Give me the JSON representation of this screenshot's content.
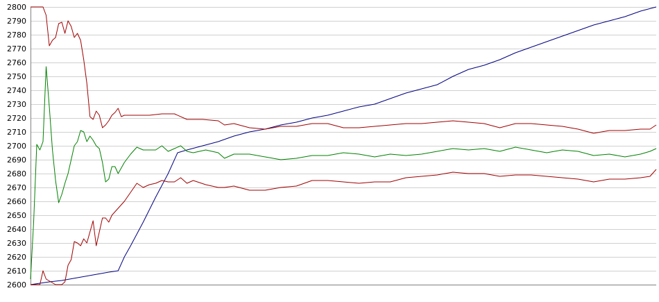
{
  "chart_data": {
    "type": "line",
    "title": "",
    "xlabel": "",
    "ylabel": "",
    "ylim": [
      2600,
      2800
    ],
    "xlim": [
      0,
      200
    ],
    "yticks": [
      2600,
      2610,
      2620,
      2630,
      2640,
      2650,
      2660,
      2670,
      2680,
      2690,
      2700,
      2710,
      2720,
      2730,
      2740,
      2750,
      2760,
      2770,
      2780,
      2790,
      2800
    ],
    "grid": true,
    "legend": "none",
    "series": [
      {
        "color": "#000080",
        "points": [
          [
            0,
            2600
          ],
          [
            3,
            2601
          ],
          [
            6,
            2602
          ],
          [
            10,
            2603
          ],
          [
            15,
            2605
          ],
          [
            20,
            2607
          ],
          [
            25,
            2609
          ],
          [
            28,
            2610
          ],
          [
            30,
            2620
          ],
          [
            32,
            2628
          ],
          [
            36,
            2645
          ],
          [
            40,
            2663
          ],
          [
            44,
            2680
          ],
          [
            47,
            2695
          ],
          [
            50,
            2697
          ],
          [
            55,
            2700
          ],
          [
            60,
            2703
          ],
          [
            65,
            2707
          ],
          [
            70,
            2710
          ],
          [
            75,
            2712
          ],
          [
            80,
            2715
          ],
          [
            85,
            2717
          ],
          [
            90,
            2720
          ],
          [
            95,
            2722
          ],
          [
            100,
            2725
          ],
          [
            105,
            2728
          ],
          [
            110,
            2730
          ],
          [
            115,
            2734
          ],
          [
            120,
            2738
          ],
          [
            125,
            2741
          ],
          [
            130,
            2744
          ],
          [
            135,
            2750
          ],
          [
            140,
            2755
          ],
          [
            145,
            2758
          ],
          [
            150,
            2762
          ],
          [
            155,
            2767
          ],
          [
            160,
            2771
          ],
          [
            165,
            2775
          ],
          [
            170,
            2779
          ],
          [
            175,
            2783
          ],
          [
            180,
            2787
          ],
          [
            185,
            2790
          ],
          [
            190,
            2793
          ],
          [
            195,
            2797
          ],
          [
            200,
            2800
          ]
        ]
      },
      {
        "color": "#008000",
        "points": [
          [
            0,
            2604
          ],
          [
            1,
            2645
          ],
          [
            2,
            2701
          ],
          [
            3,
            2697
          ],
          [
            4,
            2703
          ],
          [
            5,
            2757
          ],
          [
            6,
            2728
          ],
          [
            7,
            2697
          ],
          [
            8,
            2675
          ],
          [
            9,
            2659
          ],
          [
            10,
            2665
          ],
          [
            11,
            2673
          ],
          [
            12,
            2680
          ],
          [
            13,
            2690
          ],
          [
            14,
            2700
          ],
          [
            15,
            2703
          ],
          [
            16,
            2711
          ],
          [
            17,
            2710
          ],
          [
            18,
            2703
          ],
          [
            19,
            2707
          ],
          [
            20,
            2704
          ],
          [
            21,
            2700
          ],
          [
            22,
            2698
          ],
          [
            23,
            2688
          ],
          [
            24,
            2674
          ],
          [
            25,
            2676
          ],
          [
            26,
            2685
          ],
          [
            27,
            2685
          ],
          [
            28,
            2680
          ],
          [
            29,
            2684
          ],
          [
            30,
            2688
          ],
          [
            32,
            2694
          ],
          [
            34,
            2699
          ],
          [
            36,
            2697
          ],
          [
            38,
            2697
          ],
          [
            40,
            2697
          ],
          [
            42,
            2700
          ],
          [
            44,
            2696
          ],
          [
            46,
            2698
          ],
          [
            48,
            2700
          ],
          [
            50,
            2696
          ],
          [
            52,
            2695
          ],
          [
            56,
            2697
          ],
          [
            60,
            2695
          ],
          [
            62,
            2691
          ],
          [
            65,
            2694
          ],
          [
            70,
            2694
          ],
          [
            75,
            2692
          ],
          [
            80,
            2690
          ],
          [
            85,
            2691
          ],
          [
            90,
            2693
          ],
          [
            95,
            2693
          ],
          [
            100,
            2695
          ],
          [
            105,
            2694
          ],
          [
            110,
            2692
          ],
          [
            115,
            2694
          ],
          [
            120,
            2693
          ],
          [
            125,
            2694
          ],
          [
            130,
            2696
          ],
          [
            135,
            2698
          ],
          [
            140,
            2697
          ],
          [
            145,
            2698
          ],
          [
            150,
            2696
          ],
          [
            155,
            2699
          ],
          [
            160,
            2697
          ],
          [
            165,
            2695
          ],
          [
            170,
            2697
          ],
          [
            175,
            2696
          ],
          [
            180,
            2693
          ],
          [
            185,
            2694
          ],
          [
            190,
            2692
          ],
          [
            195,
            2694
          ],
          [
            198,
            2696
          ],
          [
            200,
            2698
          ]
        ]
      },
      {
        "color": "#a00000",
        "points": [
          [
            0,
            2800
          ],
          [
            4,
            2800
          ],
          [
            5,
            2794
          ],
          [
            6,
            2772
          ],
          [
            7,
            2776
          ],
          [
            8,
            2778
          ],
          [
            9,
            2788
          ],
          [
            10,
            2789
          ],
          [
            11,
            2781
          ],
          [
            12,
            2790
          ],
          [
            13,
            2786
          ],
          [
            14,
            2778
          ],
          [
            15,
            2781
          ],
          [
            16,
            2776
          ],
          [
            17,
            2762
          ],
          [
            18,
            2745
          ],
          [
            19,
            2721
          ],
          [
            20,
            2719
          ],
          [
            21,
            2725
          ],
          [
            22,
            2722
          ],
          [
            23,
            2713
          ],
          [
            24,
            2715
          ],
          [
            25,
            2718
          ],
          [
            26,
            2722
          ],
          [
            27,
            2724
          ],
          [
            28,
            2727
          ],
          [
            29,
            2721
          ],
          [
            30,
            2722
          ],
          [
            34,
            2722
          ],
          [
            38,
            2722
          ],
          [
            42,
            2723
          ],
          [
            46,
            2723
          ],
          [
            50,
            2719
          ],
          [
            55,
            2719
          ],
          [
            60,
            2718
          ],
          [
            62,
            2715
          ],
          [
            65,
            2716
          ],
          [
            70,
            2713
          ],
          [
            75,
            2712
          ],
          [
            80,
            2714
          ],
          [
            85,
            2714
          ],
          [
            90,
            2716
          ],
          [
            95,
            2716
          ],
          [
            100,
            2713
          ],
          [
            105,
            2713
          ],
          [
            110,
            2714
          ],
          [
            115,
            2715
          ],
          [
            120,
            2716
          ],
          [
            125,
            2716
          ],
          [
            130,
            2717
          ],
          [
            135,
            2718
          ],
          [
            140,
            2717
          ],
          [
            145,
            2716
          ],
          [
            150,
            2713
          ],
          [
            155,
            2716
          ],
          [
            160,
            2716
          ],
          [
            165,
            2715
          ],
          [
            170,
            2714
          ],
          [
            175,
            2712
          ],
          [
            180,
            2709
          ],
          [
            185,
            2711
          ],
          [
            190,
            2711
          ],
          [
            195,
            2712
          ],
          [
            198,
            2712
          ],
          [
            200,
            2715
          ]
        ]
      },
      {
        "color": "#a00000",
        "points": [
          [
            0,
            2600
          ],
          [
            3,
            2600
          ],
          [
            4,
            2610
          ],
          [
            5,
            2604
          ],
          [
            8,
            2600
          ],
          [
            10,
            2600
          ],
          [
            11,
            2602
          ],
          [
            12,
            2614
          ],
          [
            13,
            2618
          ],
          [
            14,
            2631
          ],
          [
            15,
            2630
          ],
          [
            16,
            2628
          ],
          [
            17,
            2633
          ],
          [
            18,
            2630
          ],
          [
            19,
            2638
          ],
          [
            20,
            2646
          ],
          [
            21,
            2628
          ],
          [
            22,
            2638
          ],
          [
            23,
            2648
          ],
          [
            24,
            2648
          ],
          [
            25,
            2645
          ],
          [
            26,
            2650
          ],
          [
            30,
            2660
          ],
          [
            34,
            2673
          ],
          [
            36,
            2670
          ],
          [
            38,
            2672
          ],
          [
            40,
            2673
          ],
          [
            42,
            2675
          ],
          [
            44,
            2674
          ],
          [
            46,
            2674
          ],
          [
            48,
            2677
          ],
          [
            50,
            2673
          ],
          [
            52,
            2675
          ],
          [
            56,
            2672
          ],
          [
            60,
            2670
          ],
          [
            62,
            2670
          ],
          [
            65,
            2671
          ],
          [
            70,
            2668
          ],
          [
            75,
            2668
          ],
          [
            80,
            2670
          ],
          [
            85,
            2671
          ],
          [
            90,
            2675
          ],
          [
            95,
            2675
          ],
          [
            100,
            2674
          ],
          [
            105,
            2673
          ],
          [
            110,
            2674
          ],
          [
            115,
            2674
          ],
          [
            120,
            2677
          ],
          [
            125,
            2678
          ],
          [
            130,
            2679
          ],
          [
            135,
            2681
          ],
          [
            140,
            2680
          ],
          [
            145,
            2680
          ],
          [
            150,
            2678
          ],
          [
            155,
            2679
          ],
          [
            160,
            2679
          ],
          [
            165,
            2678
          ],
          [
            170,
            2677
          ],
          [
            175,
            2676
          ],
          [
            180,
            2674
          ],
          [
            185,
            2676
          ],
          [
            190,
            2676
          ],
          [
            195,
            2677
          ],
          [
            198,
            2678
          ],
          [
            200,
            2683
          ]
        ]
      }
    ]
  }
}
